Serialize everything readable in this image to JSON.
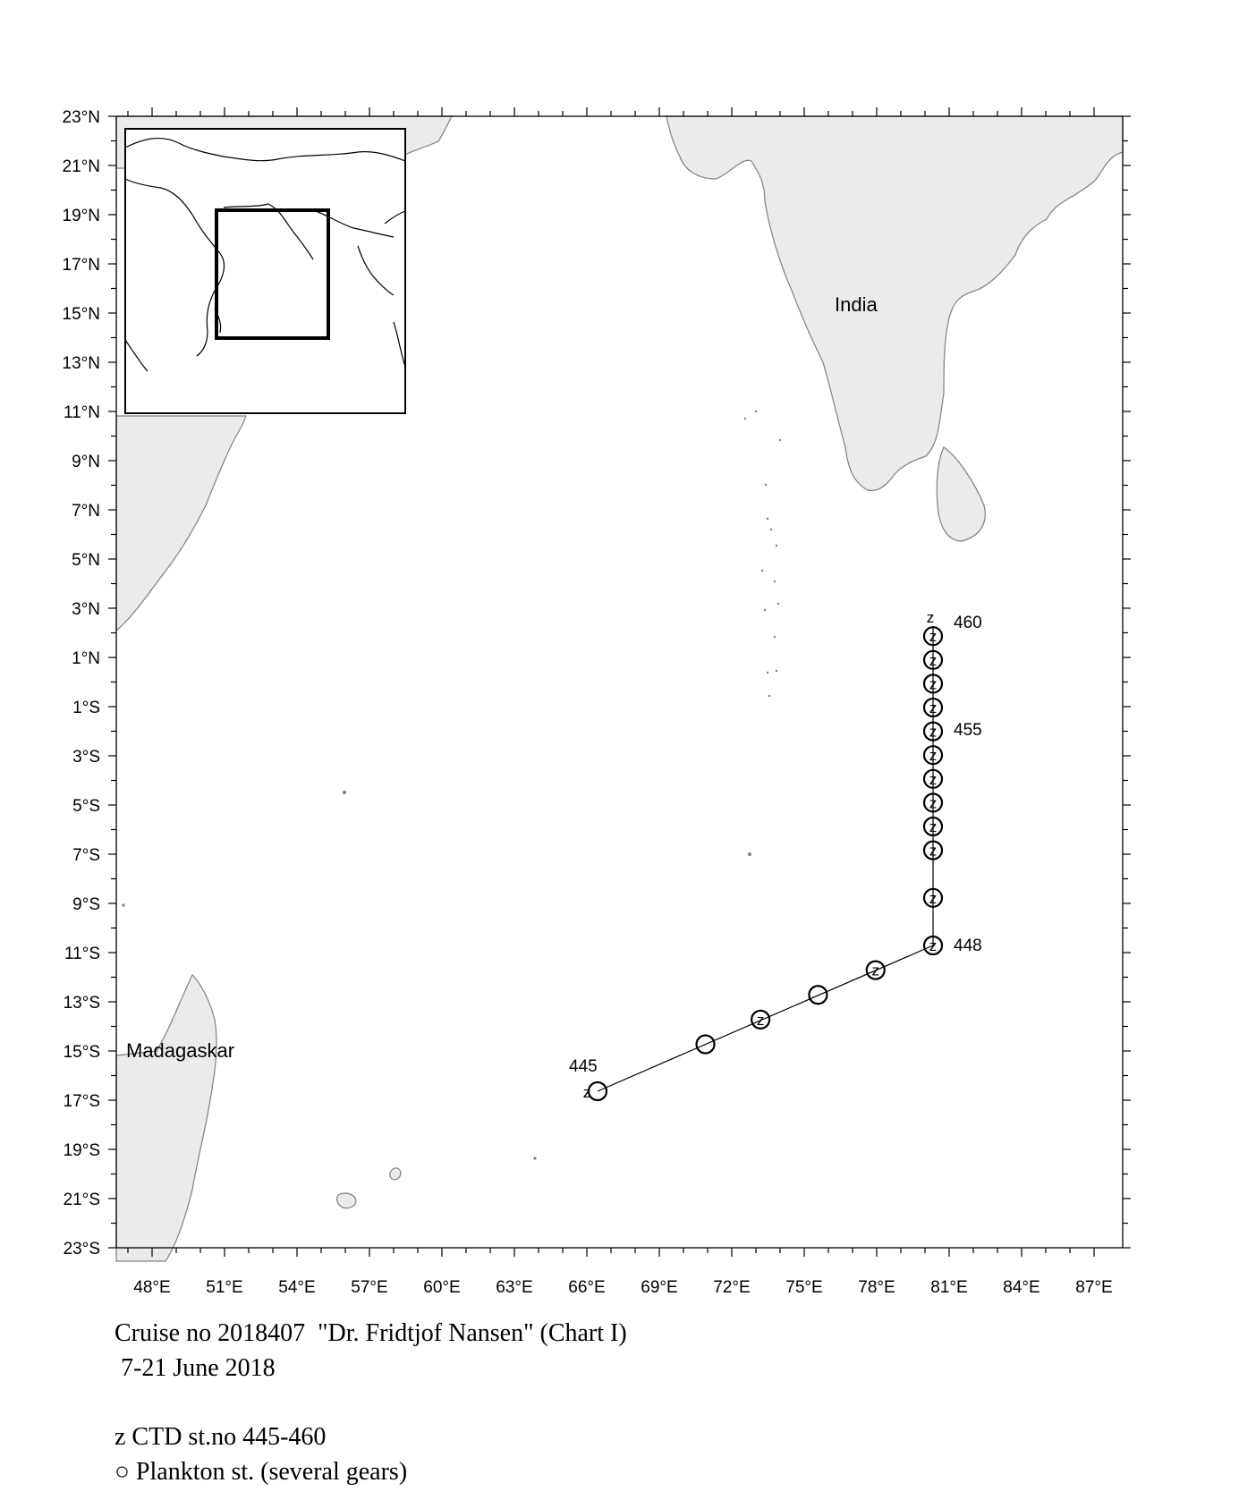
{
  "map": {
    "lat_labels": [
      "23°N",
      "21°N",
      "19°N",
      "17°N",
      "15°N",
      "13°N",
      "11°N",
      "9°N",
      "7°N",
      "5°N",
      "3°N",
      "1°N",
      "1°S",
      "3°S",
      "5°S",
      "7°S",
      "9°S",
      "11°S",
      "13°S",
      "15°S",
      "17°S",
      "19°S",
      "21°S",
      "23°S"
    ],
    "lon_labels": [
      "48°E",
      "51°E",
      "54°E",
      "57°E",
      "60°E",
      "63°E",
      "66°E",
      "69°E",
      "72°E",
      "75°E",
      "78°E",
      "81°E",
      "84°E",
      "87°E"
    ],
    "place_india": "India",
    "place_madagascar": "Madagaskar",
    "station_labels": {
      "s460": "460",
      "s455": "455",
      "s448": "448",
      "s445": "445"
    },
    "ctd_mark": "z",
    "land_color": "#ebebeb",
    "coast_color": "#808080"
  },
  "caption": {
    "line1": "Cruise no 2018407  \"Dr. Fridtjof Nansen\" (Chart I)",
    "line2": " 7-21 June 2018",
    "legend_ctd": "z CTD st.no 445-460",
    "legend_plankton": "○ Plankton st. (several gears)"
  }
}
